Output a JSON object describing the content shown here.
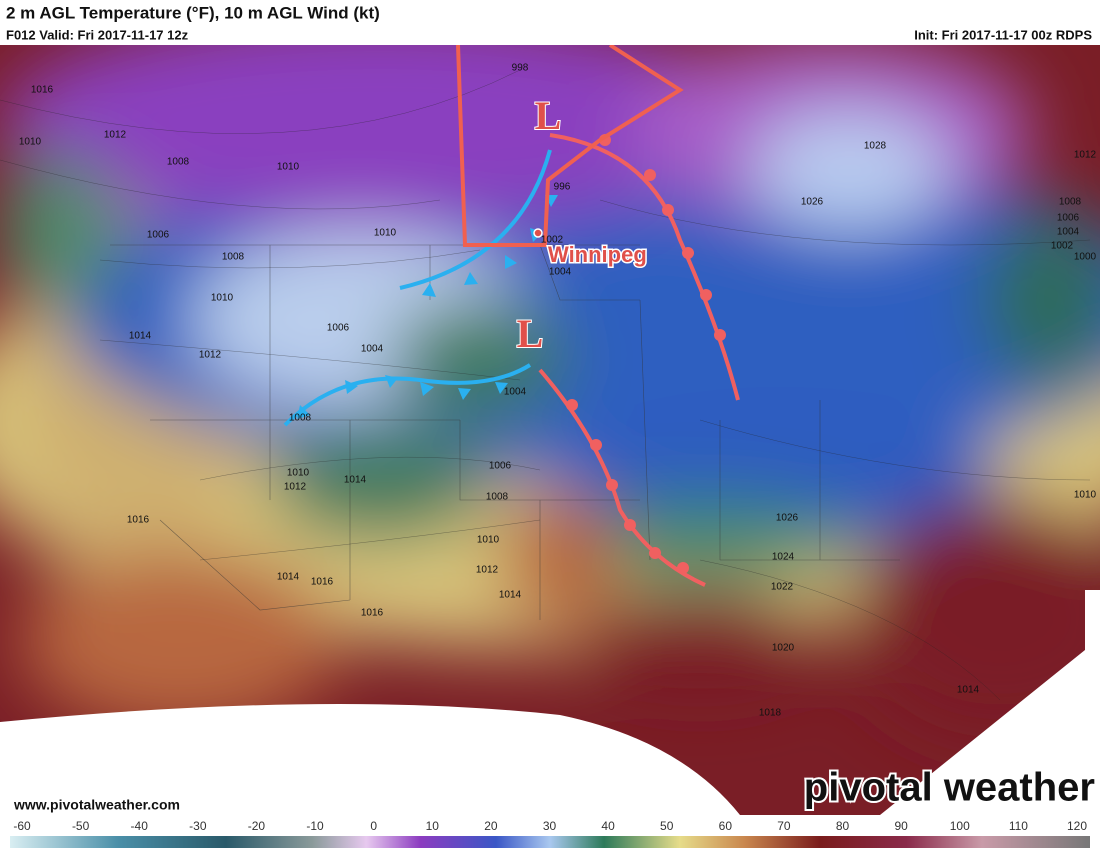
{
  "header": {
    "title": "2 m AGL Temperature (°F), 10 m AGL Wind (kt)",
    "valid": "F012 Valid: Fri 2017-11-17 12z",
    "init": "Init: Fri 2017-11-17 00z RDPS"
  },
  "annotations": {
    "city": "Winnipeg",
    "lows": [
      "L",
      "L"
    ]
  },
  "isobar_labels": [
    "1016",
    "1012",
    "1010",
    "1008",
    "1010",
    "998",
    "996",
    "1006",
    "1010",
    "1008",
    "1010",
    "1014",
    "1012",
    "1006",
    "1004",
    "1004",
    "1008",
    "1006",
    "1010",
    "1012",
    "1014",
    "1008",
    "1010",
    "1016",
    "1014",
    "1016",
    "1012",
    "1014",
    "1016",
    "1028",
    "1026",
    "1012",
    "1008",
    "1006",
    "1004",
    "1002",
    "1000",
    "1026",
    "1024",
    "1022",
    "1020",
    "1018",
    "1014",
    "1010",
    "1004",
    "1002"
  ],
  "footer": {
    "website": "www.pivotalweather.com",
    "brand": "pivotal weather"
  },
  "colorbar": {
    "ticks": [
      "-60",
      "-50",
      "-40",
      "-30",
      "-20",
      "-10",
      "0",
      "10",
      "20",
      "30",
      "40",
      "50",
      "60",
      "70",
      "80",
      "90",
      "100",
      "110",
      "120"
    ]
  }
}
